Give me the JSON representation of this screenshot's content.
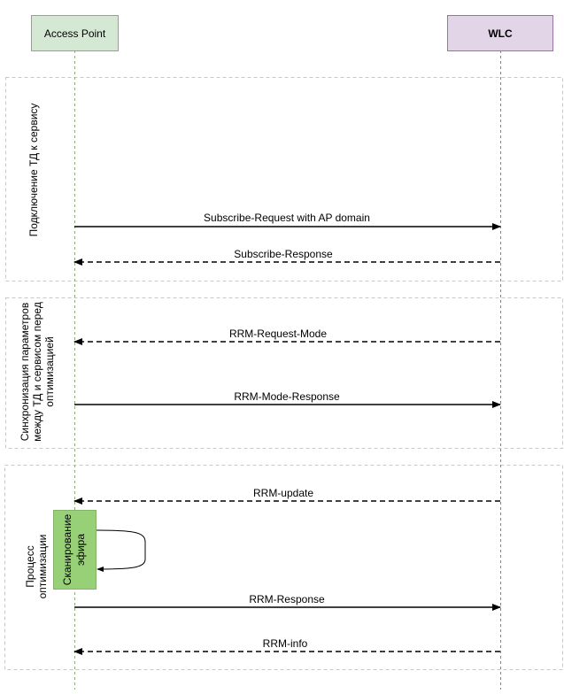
{
  "participants": [
    {
      "label": "Access Point",
      "fill": "#d5e8d4",
      "stroke": "#82b366"
    },
    {
      "label": "WLC",
      "fill": "#e1d5e7",
      "stroke": "#9673a6"
    }
  ],
  "frames": [
    {
      "lines": [
        "Подключение ТД к сервису"
      ]
    },
    {
      "lines": [
        "Синхронизация параметров",
        "между ТД и сервисом перед",
        "оптимизацией"
      ]
    },
    {
      "lines": [
        "Процесс",
        "оптимизации"
      ]
    }
  ],
  "messages": [
    {
      "label": "Subscribe-Request with AP domain",
      "direction": "AP->WLC",
      "style": "solid"
    },
    {
      "label": "Subscribe-Response",
      "direction": "WLC->AP",
      "style": "dashed"
    },
    {
      "label": "RRM-Request-Mode",
      "direction": "WLC->AP",
      "style": "dashed"
    },
    {
      "label": "RRM-Mode-Response",
      "direction": "AP->WLC",
      "style": "solid"
    },
    {
      "label": "RRM-update",
      "direction": "WLC->AP",
      "style": "dashed"
    },
    {
      "label": "RRM-Response",
      "direction": "AP->WLC",
      "style": "solid"
    },
    {
      "label": "RRM-info",
      "direction": "WLC->AP",
      "style": "dashed"
    }
  ],
  "activation": {
    "lines": [
      "Сканирование",
      "эфира"
    ],
    "fill": "#97d077",
    "stroke": "#82b366"
  }
}
